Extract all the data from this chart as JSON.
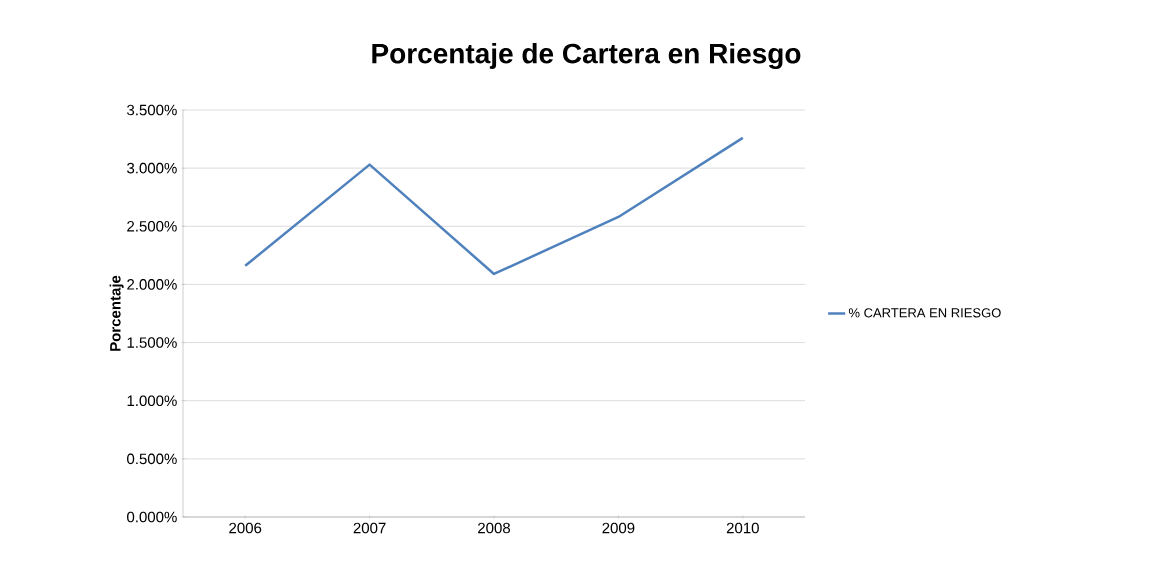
{
  "chart_data": {
    "type": "line",
    "title": "Porcentaje de Cartera en Riesgo",
    "ylabel": "Porcentaje",
    "categories": [
      "2006",
      "2007",
      "2008",
      "2009",
      "2010"
    ],
    "series": [
      {
        "name": "% CARTERA EN RIESGO",
        "color": "#4f81bd",
        "values": [
          2.16,
          3.03,
          2.09,
          2.58,
          3.26
        ]
      }
    ],
    "ylim": [
      0,
      3.5
    ],
    "yticks": [
      {
        "value": 0,
        "label": "0.000%"
      },
      {
        "value": 0.5,
        "label": "0.500%"
      },
      {
        "value": 1,
        "label": "1.000%"
      },
      {
        "value": 1.5,
        "label": "1.500%"
      },
      {
        "value": 2,
        "label": "2.000%"
      },
      {
        "value": 2.5,
        "label": "2.500%"
      },
      {
        "value": 3,
        "label": "3.000%"
      },
      {
        "value": 3.5,
        "label": "3.500%"
      }
    ],
    "grid": "y",
    "legend": "right",
    "marker": "none",
    "line_style": "solid"
  }
}
